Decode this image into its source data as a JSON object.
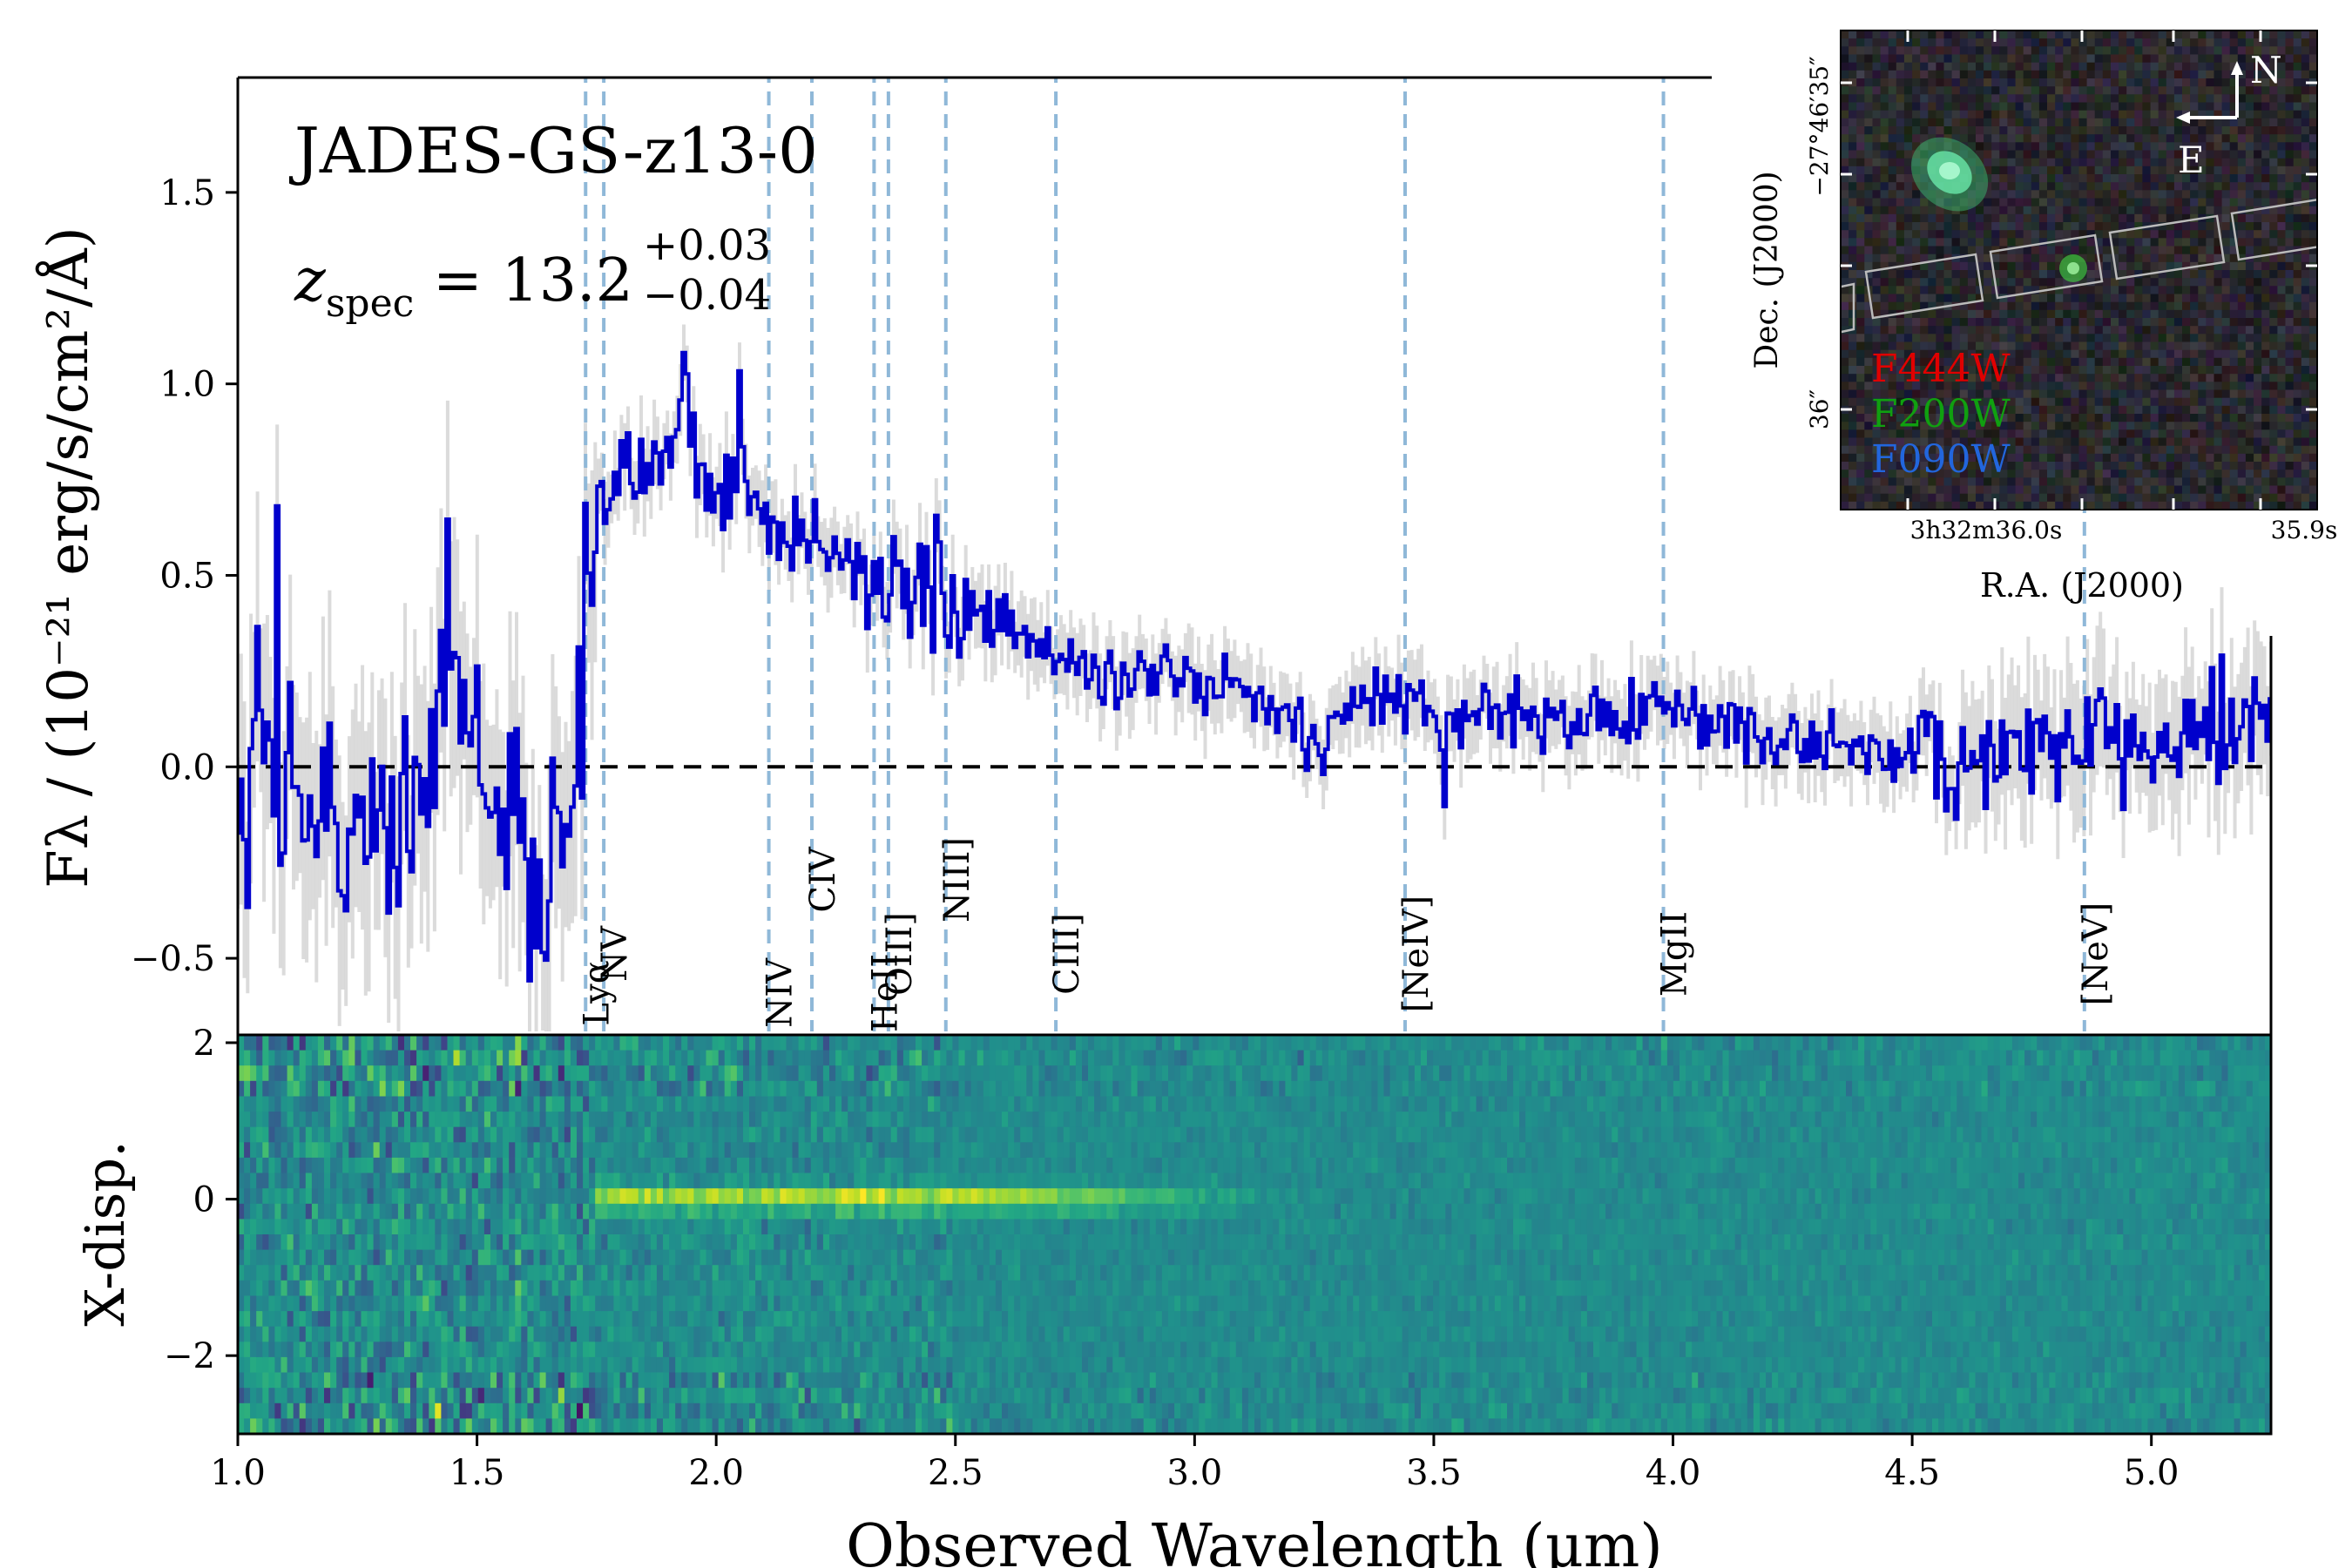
{
  "chart_data": {
    "type": "line",
    "title": "JADES-GS-z13-0",
    "redshift_label": {
      "prefix": "z",
      "subscript": "spec",
      "equals": " = 13.2",
      "sup": "+0.03",
      "sub": "−0.04"
    },
    "xlabel": "Observed Wavelength (μm)",
    "ylabel": "Fλ / (10⁻²¹ erg/s/cm²/Å)",
    "xlim": [
      1.0,
      5.25
    ],
    "ylim": [
      -0.7,
      1.8
    ],
    "x_ticks": [
      1.0,
      1.5,
      2.0,
      2.5,
      3.0,
      3.5,
      4.0,
      4.5,
      5.0
    ],
    "x_tick_labels": [
      "1.0",
      "1.5",
      "2.0",
      "2.5",
      "3.0",
      "3.5",
      "4.0",
      "4.5",
      "5.0"
    ],
    "y_ticks": [
      -0.5,
      0.0,
      0.5,
      1.0,
      1.5
    ],
    "y_tick_labels": [
      "−0.5",
      "0.0",
      "0.5",
      "1.0",
      "1.5"
    ],
    "grid": false,
    "zero_line": 0.0,
    "line_color": "#0000cc",
    "error_color": "#cfcfcf",
    "emission_line_color": "#8fb8d8",
    "emission_lines": [
      {
        "name": "Lyα",
        "x": 1.727,
        "label_pos": "low"
      },
      {
        "name": "NV",
        "x": 1.765,
        "label_pos": "mid"
      },
      {
        "name": "NIV",
        "x": 2.11,
        "label_pos": "low"
      },
      {
        "name": "CIV",
        "x": 2.2,
        "label_pos": "high"
      },
      {
        "name": "HeII",
        "x": 2.33,
        "label_pos": "low"
      },
      {
        "name": "OIII]",
        "x": 2.36,
        "label_pos": "mid"
      },
      {
        "name": "NIII]",
        "x": 2.48,
        "label_pos": "high"
      },
      {
        "name": "CIII]",
        "x": 2.71,
        "label_pos": "mid"
      },
      {
        "name": "[NeIV]",
        "x": 3.44,
        "label_pos": "mid"
      },
      {
        "name": "MgII",
        "x": 3.98,
        "label_pos": "mid"
      },
      {
        "name": "[NeV]",
        "x": 4.86,
        "label_pos": "mid"
      }
    ],
    "spectrum_anchors": {
      "x": [
        1.0,
        1.05,
        1.1,
        1.15,
        1.2,
        1.25,
        1.3,
        1.35,
        1.4,
        1.45,
        1.5,
        1.55,
        1.6,
        1.65,
        1.7,
        1.73,
        1.76,
        1.8,
        1.85,
        1.9,
        1.93,
        1.96,
        2.0,
        2.05,
        2.1,
        2.15,
        2.2,
        2.3,
        2.4,
        2.5,
        2.6,
        2.7,
        2.8,
        2.9,
        3.0,
        3.1,
        3.2,
        3.26,
        3.3,
        3.4,
        3.5,
        3.6,
        3.8,
        4.0,
        4.2,
        4.4,
        4.6,
        4.8,
        5.0,
        5.25
      ],
      "y": [
        -0.15,
        0.1,
        0.0,
        -0.1,
        -0.15,
        -0.2,
        -0.15,
        -0.05,
        0.1,
        0.25,
        0.05,
        -0.1,
        -0.2,
        -0.3,
        -0.05,
        0.4,
        0.65,
        0.7,
        0.75,
        0.85,
        1.0,
        0.8,
        0.7,
        0.75,
        0.65,
        0.6,
        0.6,
        0.5,
        0.45,
        0.4,
        0.35,
        0.3,
        0.25,
        0.25,
        0.22,
        0.2,
        0.12,
        0.03,
        0.15,
        0.18,
        0.12,
        0.15,
        0.13,
        0.15,
        0.08,
        0.05,
        0.02,
        0.05,
        0.08,
        0.1
      ]
    },
    "spectrum_2d": {
      "ylabel": "X-disp.",
      "y_ticks": [
        -2,
        0,
        2
      ],
      "y_tick_labels": [
        "−2",
        "0",
        "2"
      ],
      "ylim": [
        -3.0,
        2.1
      ],
      "trace_y": 0.0,
      "trace_x_range": [
        1.75,
        2.6
      ],
      "colormap": "viridis"
    },
    "inset_image": {
      "xlabel": "R.A. (J2000)",
      "ylabel": "Dec. (J2000)",
      "x_tick_labels": [
        "3h32m36.0s",
        "35.9s"
      ],
      "y_tick_labels": [
        "−27°46′35″",
        "36″"
      ],
      "compass_north": "N",
      "compass_east": "E",
      "filters": [
        {
          "name": "F444W",
          "color": "#e00000"
        },
        {
          "name": "F200W",
          "color": "#10a010"
        },
        {
          "name": "F090W",
          "color": "#2266dd"
        }
      ]
    }
  }
}
